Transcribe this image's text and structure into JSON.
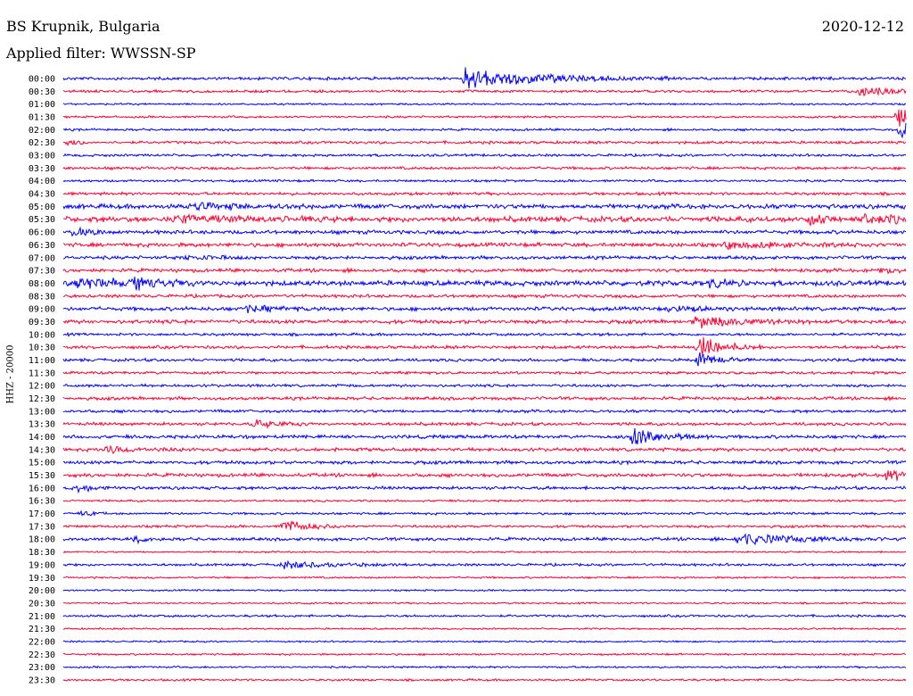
{
  "header": {
    "station": "BS Krupnik, Bulgaria",
    "filter": "Applied filter: WWSSN-SP",
    "date": "2020-12-12"
  },
  "colors": {
    "even": "#0000ff",
    "odd": "#ff0033"
  },
  "chart_data": {
    "type": "line",
    "title": "BS Krupnik, Bulgaria",
    "ylabel": "HHZ - 20000",
    "xlabel": "",
    "tick_labels": [
      "00:00",
      "00:30",
      "01:00",
      "01:30",
      "02:00",
      "02:30",
      "03:00",
      "03:30",
      "04:00",
      "04:30",
      "05:00",
      "05:30",
      "06:00",
      "06:30",
      "07:00",
      "07:30",
      "08:00",
      "08:30",
      "09:00",
      "09:30",
      "10:00",
      "10:30",
      "11:00",
      "11:30",
      "12:00",
      "12:30",
      "13:00",
      "13:30",
      "14:00",
      "14:30",
      "15:00",
      "15:30",
      "16:00",
      "16:30",
      "17:00",
      "17:30",
      "18:00",
      "18:30",
      "19:00",
      "19:30",
      "20:00",
      "20:30",
      "21:00",
      "21:30",
      "22:00",
      "22:30",
      "23:00",
      "23:30"
    ],
    "trace_minutes": 30,
    "series": [
      {
        "index": 0,
        "noise": 1.4,
        "events": [
          {
            "t": 14.3,
            "amp": 14,
            "dur": 2.5
          }
        ]
      },
      {
        "index": 1,
        "noise": 1.2,
        "events": [
          {
            "t": 28.3,
            "amp": 6,
            "dur": 1.2
          }
        ]
      },
      {
        "index": 2,
        "noise": 0.9,
        "events": []
      },
      {
        "index": 3,
        "noise": 1.0,
        "events": [
          {
            "t": 29.7,
            "amp": 14,
            "dur": 0.5
          }
        ]
      },
      {
        "index": 4,
        "noise": 1.1,
        "events": [
          {
            "t": 29.8,
            "amp": 16,
            "dur": 0.4
          }
        ]
      },
      {
        "index": 5,
        "noise": 1.3,
        "events": [
          {
            "t": 0.1,
            "amp": 5,
            "dur": 0.4
          }
        ]
      },
      {
        "index": 6,
        "noise": 1.2,
        "events": []
      },
      {
        "index": 7,
        "noise": 1.3,
        "events": []
      },
      {
        "index": 8,
        "noise": 1.1,
        "events": []
      },
      {
        "index": 9,
        "noise": 1.4,
        "events": []
      },
      {
        "index": 10,
        "noise": 2.2,
        "events": [
          {
            "t": 4.5,
            "amp": 4,
            "dur": 1.5
          }
        ]
      },
      {
        "index": 11,
        "noise": 2.6,
        "events": [
          {
            "t": 4.0,
            "amp": 4,
            "dur": 2
          },
          {
            "t": 26.5,
            "amp": 12,
            "dur": 0.4
          },
          {
            "t": 28.5,
            "amp": 5,
            "dur": 1.5
          }
        ]
      },
      {
        "index": 12,
        "noise": 1.8,
        "events": [
          {
            "t": 0.3,
            "amp": 5,
            "dur": 0.7
          }
        ]
      },
      {
        "index": 13,
        "noise": 1.9,
        "events": [
          {
            "t": 23.5,
            "amp": 4,
            "dur": 2
          }
        ]
      },
      {
        "index": 14,
        "noise": 1.6,
        "events": [
          {
            "t": 4.3,
            "amp": 3,
            "dur": 1
          }
        ]
      },
      {
        "index": 15,
        "noise": 1.7,
        "events": [
          {
            "t": 29,
            "amp": 3,
            "dur": 1
          }
        ]
      },
      {
        "index": 16,
        "noise": 2.4,
        "events": [
          {
            "t": 0.5,
            "amp": 7,
            "dur": 1.5
          },
          {
            "t": 2.5,
            "amp": 7,
            "dur": 0.8
          },
          {
            "t": 23,
            "amp": 5,
            "dur": 0.6
          }
        ]
      },
      {
        "index": 17,
        "noise": 1.5,
        "events": []
      },
      {
        "index": 18,
        "noise": 1.8,
        "events": [
          {
            "t": 6.5,
            "amp": 4,
            "dur": 1
          },
          {
            "t": 21.5,
            "amp": 4,
            "dur": 1
          }
        ]
      },
      {
        "index": 19,
        "noise": 1.8,
        "events": [
          {
            "t": 22.5,
            "amp": 7,
            "dur": 1.5
          }
        ]
      },
      {
        "index": 20,
        "noise": 1.3,
        "events": []
      },
      {
        "index": 21,
        "noise": 1.5,
        "events": [
          {
            "t": 22.6,
            "amp": 15,
            "dur": 0.8
          }
        ]
      },
      {
        "index": 22,
        "noise": 1.4,
        "events": [
          {
            "t": 22.6,
            "amp": 10,
            "dur": 0.6
          }
        ]
      },
      {
        "index": 23,
        "noise": 1.3,
        "events": []
      },
      {
        "index": 24,
        "noise": 1.3,
        "events": []
      },
      {
        "index": 25,
        "noise": 1.5,
        "events": []
      },
      {
        "index": 26,
        "noise": 1.4,
        "events": []
      },
      {
        "index": 27,
        "noise": 1.5,
        "events": [
          {
            "t": 6.8,
            "amp": 5,
            "dur": 0.8
          }
        ]
      },
      {
        "index": 28,
        "noise": 1.6,
        "events": [
          {
            "t": 20.2,
            "amp": 14,
            "dur": 1.0
          }
        ]
      },
      {
        "index": 29,
        "noise": 1.6,
        "events": [
          {
            "t": 1.5,
            "amp": 5,
            "dur": 1
          }
        ]
      },
      {
        "index": 30,
        "noise": 1.6,
        "events": []
      },
      {
        "index": 31,
        "noise": 1.7,
        "events": [
          {
            "t": 29.3,
            "amp": 7,
            "dur": 1.2
          }
        ]
      },
      {
        "index": 32,
        "noise": 1.5,
        "events": [
          {
            "t": 0.4,
            "amp": 5,
            "dur": 0.6
          }
        ]
      },
      {
        "index": 33,
        "noise": 1.0,
        "events": []
      },
      {
        "index": 34,
        "noise": 1.1,
        "events": [
          {
            "t": 0.6,
            "amp": 3,
            "dur": 0.4
          }
        ]
      },
      {
        "index": 35,
        "noise": 1.2,
        "events": [
          {
            "t": 7.8,
            "amp": 10,
            "dur": 0.8
          }
        ]
      },
      {
        "index": 36,
        "noise": 1.5,
        "events": [
          {
            "t": 2.6,
            "amp": 5,
            "dur": 0.3
          },
          {
            "t": 24,
            "amp": 7,
            "dur": 2
          }
        ]
      },
      {
        "index": 37,
        "noise": 0.8,
        "events": []
      },
      {
        "index": 38,
        "noise": 1.2,
        "events": [
          {
            "t": 7.8,
            "amp": 5,
            "dur": 1.5
          }
        ]
      },
      {
        "index": 39,
        "noise": 0.9,
        "events": []
      },
      {
        "index": 40,
        "noise": 0.8,
        "events": []
      },
      {
        "index": 41,
        "noise": 0.8,
        "events": []
      },
      {
        "index": 42,
        "noise": 1.1,
        "events": []
      },
      {
        "index": 43,
        "noise": 0.8,
        "events": []
      },
      {
        "index": 44,
        "noise": 0.8,
        "events": []
      },
      {
        "index": 45,
        "noise": 0.9,
        "events": []
      },
      {
        "index": 46,
        "noise": 0.9,
        "events": []
      },
      {
        "index": 47,
        "noise": 1.0,
        "events": []
      }
    ]
  }
}
